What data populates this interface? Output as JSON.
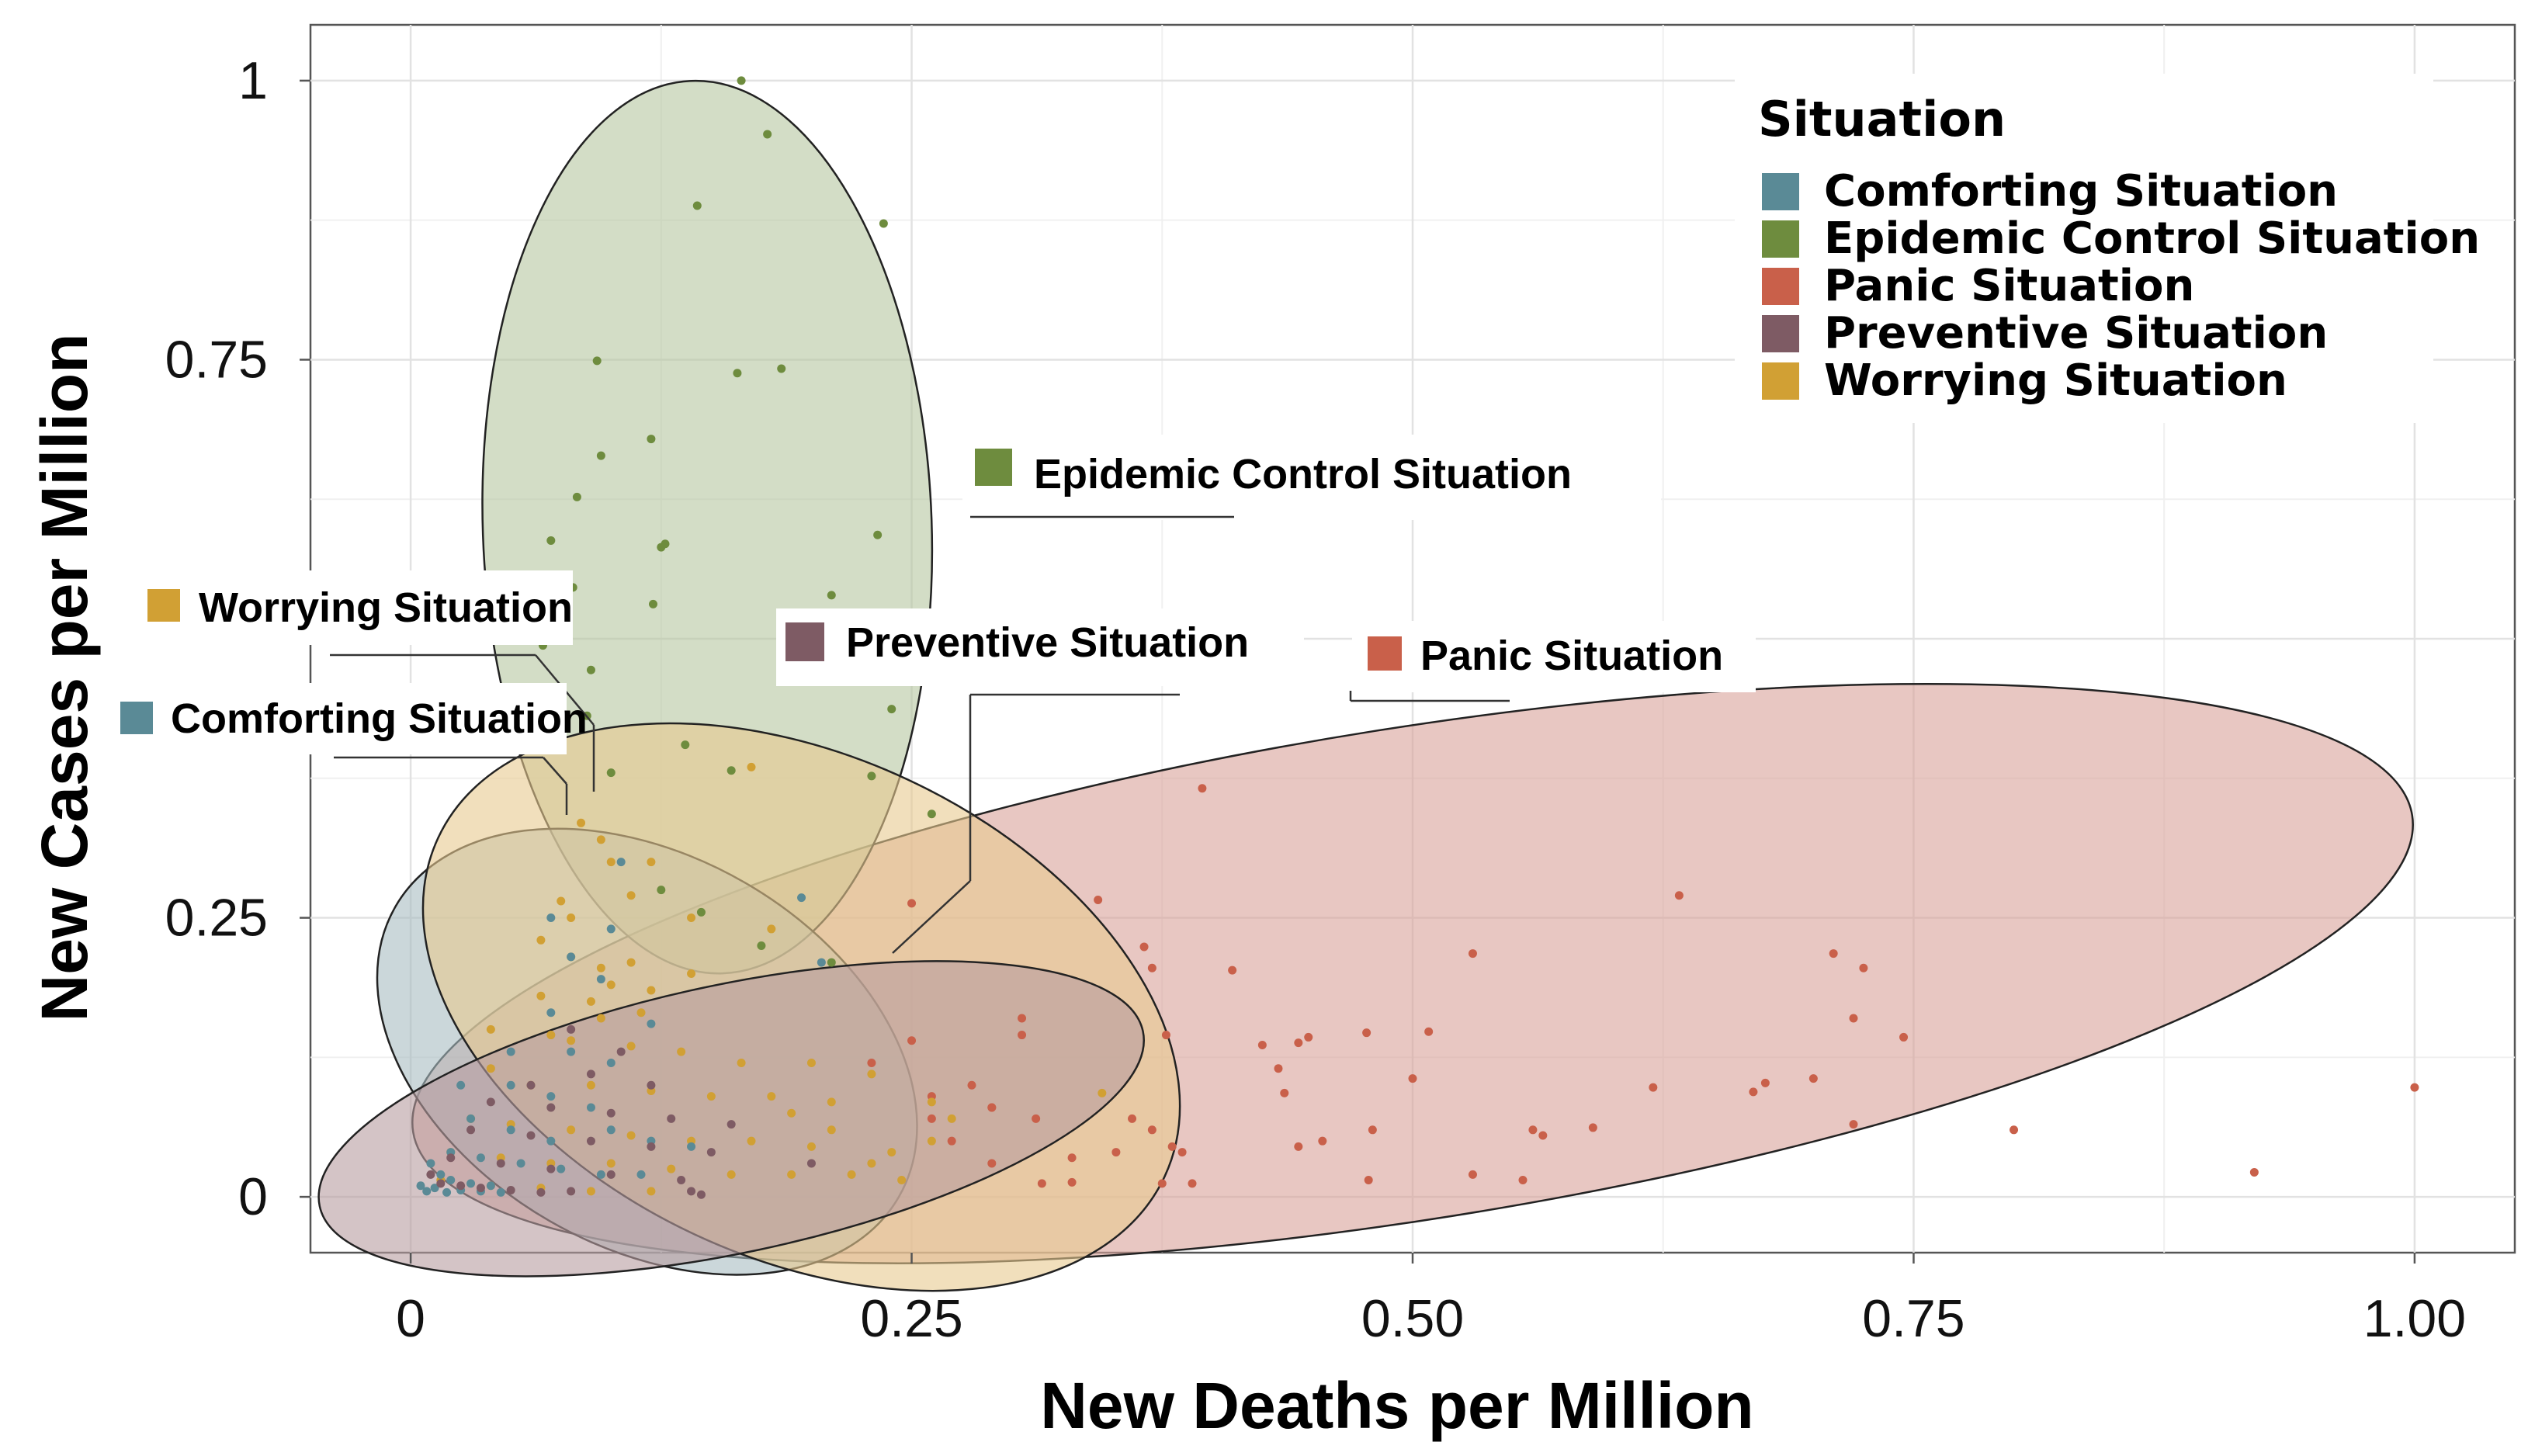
{
  "chart_data": {
    "type": "scatter",
    "title": "",
    "xlabel": "New Deaths per Million",
    "ylabel": "New Cases per Million",
    "xlim": [
      -0.05,
      1.05
    ],
    "ylim": [
      -0.05,
      1.05
    ],
    "x_ticks": [
      {
        "value": 0,
        "label": "0"
      },
      {
        "value": 0.25,
        "label": "0.25"
      },
      {
        "value": 0.5,
        "label": "0.50"
      },
      {
        "value": 0.75,
        "label": "0.75"
      },
      {
        "value": 1.0,
        "label": "1.00"
      }
    ],
    "y_ticks": [
      {
        "value": 0,
        "label": "0"
      },
      {
        "value": 0.25,
        "label": "0.25"
      },
      {
        "value": 0.75,
        "label": "0.75"
      },
      {
        "value": 1,
        "label": "1"
      }
    ],
    "grid": true,
    "legend": {
      "title": "Situation",
      "position": "top-right",
      "entries": [
        {
          "label": "Comforting Situation",
          "color": "#5a8a96"
        },
        {
          "label": "Epidemic Control Situation",
          "color": "#6e8c3e"
        },
        {
          "label": "Panic Situation",
          "color": "#c9604a"
        },
        {
          "label": "Preventive Situation",
          "color": "#7e5b64"
        },
        {
          "label": "Worrying Situation",
          "color": "#d1a034"
        }
      ]
    },
    "series": [
      {
        "name": "Epidemic Control Situation",
        "color": "#6e8c3e",
        "fill": "#b5c7a0",
        "ellipse": {
          "cx": 0.148,
          "cy": 0.6,
          "rx": 0.112,
          "ry": 0.4,
          "angle_deg": -2
        },
        "callout": "Epidemic Control Situation",
        "points": [
          [
            0.165,
            1.0
          ],
          [
            0.178,
            0.952
          ],
          [
            0.236,
            0.872
          ],
          [
            0.143,
            0.888
          ],
          [
            0.093,
            0.749
          ],
          [
            0.163,
            0.738
          ],
          [
            0.185,
            0.742
          ],
          [
            0.095,
            0.664
          ],
          [
            0.12,
            0.679
          ],
          [
            0.083,
            0.627
          ],
          [
            0.07,
            0.588
          ],
          [
            0.125,
            0.582
          ],
          [
            0.127,
            0.585
          ],
          [
            0.233,
            0.593
          ],
          [
            0.081,
            0.546
          ],
          [
            0.121,
            0.531
          ],
          [
            0.21,
            0.539
          ],
          [
            0.066,
            0.494
          ],
          [
            0.09,
            0.472
          ],
          [
            0.088,
            0.431
          ],
          [
            0.24,
            0.437
          ],
          [
            0.137,
            0.405
          ],
          [
            0.1,
            0.38
          ],
          [
            0.16,
            0.382
          ],
          [
            0.23,
            0.377
          ],
          [
            0.26,
            0.343
          ],
          [
            0.125,
            0.275
          ],
          [
            0.145,
            0.255
          ],
          [
            0.21,
            0.21
          ],
          [
            0.175,
            0.225
          ]
        ]
      },
      {
        "name": "Panic Situation",
        "color": "#c9604a",
        "fill": "#d9a19a",
        "ellipse": {
          "cx": 0.5,
          "cy": 0.2,
          "rx": 0.505,
          "ry": 0.22,
          "angle_deg": -9
        },
        "callout": "Panic Situation",
        "points": [
          [
            0.395,
            0.366
          ],
          [
            0.633,
            0.27
          ],
          [
            0.343,
            0.266
          ],
          [
            0.25,
            0.263
          ],
          [
            0.366,
            0.224
          ],
          [
            0.37,
            0.205
          ],
          [
            0.41,
            0.203
          ],
          [
            0.53,
            0.218
          ],
          [
            0.71,
            0.218
          ],
          [
            0.725,
            0.205
          ],
          [
            0.72,
            0.16
          ],
          [
            0.305,
            0.16
          ],
          [
            0.377,
            0.145
          ],
          [
            0.508,
            0.148
          ],
          [
            0.477,
            0.147
          ],
          [
            0.448,
            0.143
          ],
          [
            0.443,
            0.138
          ],
          [
            0.425,
            0.136
          ],
          [
            0.433,
            0.115
          ],
          [
            0.5,
            0.106
          ],
          [
            0.436,
            0.093
          ],
          [
            0.62,
            0.098
          ],
          [
            0.67,
            0.094
          ],
          [
            0.676,
            0.102
          ],
          [
            0.7,
            0.106
          ],
          [
            0.745,
            0.143
          ],
          [
            0.29,
            0.08
          ],
          [
            0.312,
            0.07
          ],
          [
            0.36,
            0.07
          ],
          [
            0.37,
            0.06
          ],
          [
            0.48,
            0.06
          ],
          [
            0.56,
            0.06
          ],
          [
            0.565,
            0.055
          ],
          [
            0.59,
            0.062
          ],
          [
            0.72,
            0.065
          ],
          [
            0.8,
            0.06
          ],
          [
            1.0,
            0.098
          ],
          [
            0.443,
            0.045
          ],
          [
            0.455,
            0.05
          ],
          [
            0.38,
            0.045
          ],
          [
            0.385,
            0.04
          ],
          [
            0.352,
            0.04
          ],
          [
            0.33,
            0.035
          ],
          [
            0.53,
            0.02
          ],
          [
            0.555,
            0.015
          ],
          [
            0.478,
            0.015
          ],
          [
            0.92,
            0.022
          ],
          [
            0.375,
            0.012
          ],
          [
            0.33,
            0.013
          ],
          [
            0.315,
            0.012
          ],
          [
            0.39,
            0.012
          ],
          [
            0.29,
            0.03
          ],
          [
            0.27,
            0.05
          ],
          [
            0.26,
            0.09
          ],
          [
            0.28,
            0.1
          ],
          [
            0.23,
            0.12
          ],
          [
            0.25,
            0.14
          ],
          [
            0.305,
            0.145
          ],
          [
            0.29,
            0.08
          ],
          [
            0.26,
            0.07
          ]
        ]
      },
      {
        "name": "Worrying Situation",
        "color": "#d1a034",
        "fill": "#e8c990",
        "ellipse": {
          "cx": 0.195,
          "cy": 0.17,
          "rx": 0.2,
          "ry": 0.225,
          "angle_deg": 25
        },
        "callout": "Worrying Situation",
        "points": [
          [
            0.085,
            0.335
          ],
          [
            0.17,
            0.385
          ],
          [
            0.095,
            0.32
          ],
          [
            0.1,
            0.3
          ],
          [
            0.12,
            0.3
          ],
          [
            0.11,
            0.27
          ],
          [
            0.075,
            0.265
          ],
          [
            0.08,
            0.25
          ],
          [
            0.14,
            0.25
          ],
          [
            0.18,
            0.24
          ],
          [
            0.065,
            0.23
          ],
          [
            0.08,
            0.215
          ],
          [
            0.095,
            0.205
          ],
          [
            0.11,
            0.21
          ],
          [
            0.1,
            0.19
          ],
          [
            0.12,
            0.185
          ],
          [
            0.14,
            0.2
          ],
          [
            0.065,
            0.18
          ],
          [
            0.09,
            0.175
          ],
          [
            0.095,
            0.16
          ],
          [
            0.115,
            0.165
          ],
          [
            0.04,
            0.15
          ],
          [
            0.07,
            0.145
          ],
          [
            0.08,
            0.14
          ],
          [
            0.11,
            0.135
          ],
          [
            0.135,
            0.13
          ],
          [
            0.165,
            0.12
          ],
          [
            0.2,
            0.12
          ],
          [
            0.23,
            0.11
          ],
          [
            0.04,
            0.115
          ],
          [
            0.06,
            0.1
          ],
          [
            0.09,
            0.1
          ],
          [
            0.12,
            0.095
          ],
          [
            0.15,
            0.09
          ],
          [
            0.18,
            0.09
          ],
          [
            0.21,
            0.085
          ],
          [
            0.26,
            0.085
          ],
          [
            0.27,
            0.07
          ],
          [
            0.03,
            0.07
          ],
          [
            0.05,
            0.065
          ],
          [
            0.08,
            0.06
          ],
          [
            0.11,
            0.055
          ],
          [
            0.14,
            0.05
          ],
          [
            0.17,
            0.05
          ],
          [
            0.2,
            0.045
          ],
          [
            0.24,
            0.04
          ],
          [
            0.02,
            0.04
          ],
          [
            0.045,
            0.035
          ],
          [
            0.07,
            0.03
          ],
          [
            0.1,
            0.03
          ],
          [
            0.13,
            0.025
          ],
          [
            0.16,
            0.02
          ],
          [
            0.19,
            0.02
          ],
          [
            0.22,
            0.02
          ],
          [
            0.245,
            0.015
          ],
          [
            0.015,
            0.015
          ],
          [
            0.04,
            0.01
          ],
          [
            0.065,
            0.008
          ],
          [
            0.09,
            0.005
          ],
          [
            0.12,
            0.005
          ],
          [
            0.345,
            0.093
          ],
          [
            0.26,
            0.05
          ],
          [
            0.23,
            0.03
          ],
          [
            0.21,
            0.06
          ],
          [
            0.19,
            0.075
          ]
        ]
      },
      {
        "name": "Comforting Situation",
        "color": "#5a8a96",
        "fill": "#a9bcc2",
        "ellipse": {
          "cx": 0.118,
          "cy": 0.13,
          "rx": 0.145,
          "ry": 0.175,
          "angle_deg": 30
        },
        "callout": "Comforting Situation",
        "points": [
          [
            0.105,
            0.3
          ],
          [
            0.195,
            0.268
          ],
          [
            0.07,
            0.25
          ],
          [
            0.1,
            0.24
          ],
          [
            0.205,
            0.21
          ],
          [
            0.08,
            0.215
          ],
          [
            0.095,
            0.195
          ],
          [
            0.07,
            0.165
          ],
          [
            0.12,
            0.155
          ],
          [
            0.05,
            0.13
          ],
          [
            0.08,
            0.13
          ],
          [
            0.1,
            0.12
          ],
          [
            0.025,
            0.1
          ],
          [
            0.05,
            0.1
          ],
          [
            0.07,
            0.09
          ],
          [
            0.09,
            0.08
          ],
          [
            0.03,
            0.07
          ],
          [
            0.05,
            0.06
          ],
          [
            0.07,
            0.05
          ],
          [
            0.1,
            0.06
          ],
          [
            0.12,
            0.05
          ],
          [
            0.14,
            0.045
          ],
          [
            0.02,
            0.04
          ],
          [
            0.035,
            0.035
          ],
          [
            0.055,
            0.03
          ],
          [
            0.075,
            0.025
          ],
          [
            0.095,
            0.02
          ],
          [
            0.115,
            0.02
          ],
          [
            0.01,
            0.03
          ],
          [
            0.015,
            0.02
          ],
          [
            0.02,
            0.015
          ],
          [
            0.03,
            0.012
          ],
          [
            0.04,
            0.01
          ],
          [
            0.005,
            0.01
          ],
          [
            0.008,
            0.005
          ],
          [
            0.012,
            0.008
          ],
          [
            0.018,
            0.004
          ],
          [
            0.025,
            0.006
          ],
          [
            0.035,
            0.005
          ],
          [
            0.045,
            0.004
          ]
        ]
      },
      {
        "name": "Preventive Situation",
        "color": "#7e5b64",
        "fill": "#b89ca0",
        "ellipse": {
          "cx": 0.16,
          "cy": 0.07,
          "rx": 0.21,
          "ry": 0.12,
          "angle_deg": -12
        },
        "callout": "Preventive Situation",
        "points": [
          [
            0.08,
            0.15
          ],
          [
            0.105,
            0.13
          ],
          [
            0.09,
            0.11
          ],
          [
            0.06,
            0.1
          ],
          [
            0.12,
            0.1
          ],
          [
            0.04,
            0.085
          ],
          [
            0.07,
            0.08
          ],
          [
            0.1,
            0.075
          ],
          [
            0.13,
            0.07
          ],
          [
            0.16,
            0.065
          ],
          [
            0.03,
            0.06
          ],
          [
            0.06,
            0.055
          ],
          [
            0.09,
            0.05
          ],
          [
            0.12,
            0.045
          ],
          [
            0.15,
            0.04
          ],
          [
            0.02,
            0.035
          ],
          [
            0.045,
            0.03
          ],
          [
            0.07,
            0.025
          ],
          [
            0.1,
            0.02
          ],
          [
            0.135,
            0.015
          ],
          [
            0.01,
            0.02
          ],
          [
            0.015,
            0.012
          ],
          [
            0.025,
            0.01
          ],
          [
            0.035,
            0.008
          ],
          [
            0.05,
            0.006
          ],
          [
            0.065,
            0.004
          ],
          [
            0.08,
            0.005
          ],
          [
            0.14,
            0.005
          ],
          [
            0.145,
            0.002
          ],
          [
            0.2,
            0.03
          ]
        ]
      }
    ]
  }
}
